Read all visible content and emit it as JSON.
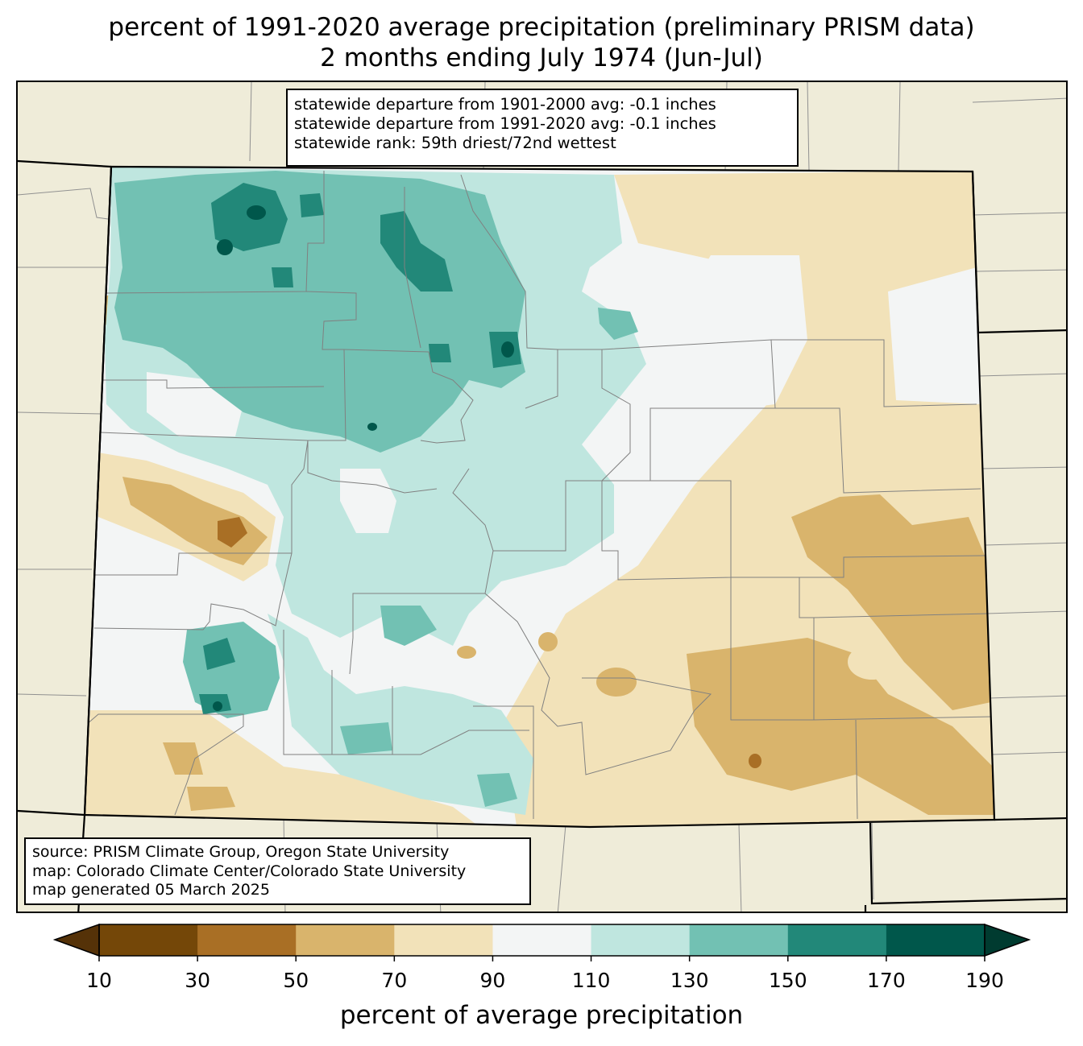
{
  "title": {
    "line1": "percent of 1991-2020 average precipitation (preliminary PRISM data)",
    "line2": "2 months ending July 1974 (Jun-Jul)"
  },
  "stats": {
    "line1": "statewide departure from 1901-2000 avg: -0.1 inches",
    "line2": "statewide departure from 1991-2020 avg: -0.1 inches",
    "line3": "statewide rank: 59th driest/72nd wettest"
  },
  "source": {
    "line1": "source: PRISM Climate Group, Oregon State University",
    "line2": "map: Colorado Climate Center/Colorado State University",
    "line3": "map generated 05 March 2025"
  },
  "colorbar": {
    "label": "percent of average precipitation",
    "ticks": [
      "10",
      "30",
      "50",
      "70",
      "90",
      "110",
      "130",
      "150",
      "170",
      "190"
    ],
    "colors": [
      "#744708",
      "#a96f25",
      "#d9b46c",
      "#f2e2b9",
      "#f3f5f5",
      "#bfe6df",
      "#72c1b3",
      "#228879",
      "#00574b"
    ],
    "under_color": "#553208",
    "over_color": "#003b30"
  },
  "map_colors": {
    "land_outside": "#efecd9",
    "county_line": "#808080",
    "state_line": "#000000"
  }
}
